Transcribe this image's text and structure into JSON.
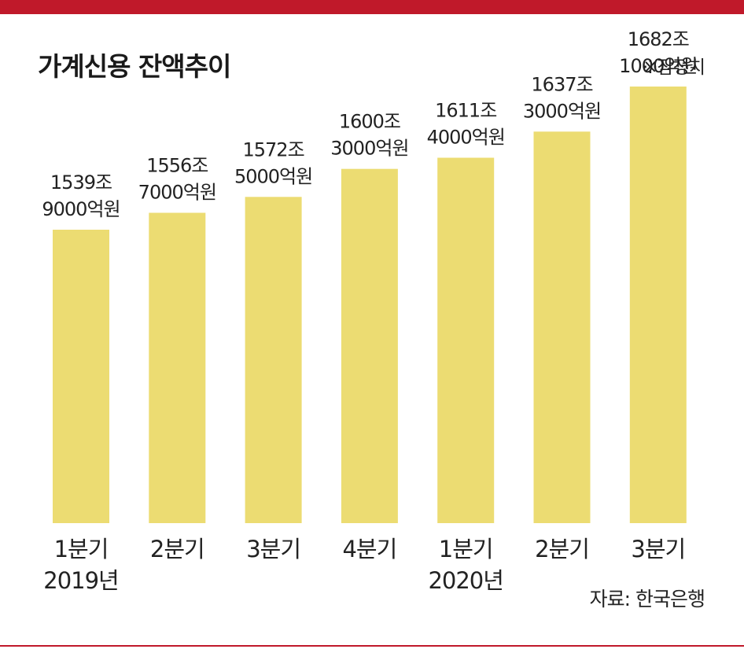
{
  "title": "가계신용 잔액추이",
  "note": "※잠정치",
  "source": "자료: 한국은행",
  "colors": {
    "accent": "#c0192a",
    "bar": "#ecdc72"
  },
  "chart_data": {
    "type": "bar",
    "title": "가계신용 잔액추이",
    "categories": [
      "1분기",
      "2분기",
      "3분기",
      "4분기",
      "1분기",
      "2분기",
      "3분기"
    ],
    "year_labels": [
      "2019년",
      "",
      "",
      "",
      "2020년",
      "",
      ""
    ],
    "values": [
      1539.9,
      1556.7,
      1572.5,
      1600.3,
      1611.4,
      1637.3,
      1682.1
    ],
    "value_labels": [
      [
        "1539조",
        "9000억원"
      ],
      [
        "1556조",
        "7000억원"
      ],
      [
        "1572조",
        "5000억원"
      ],
      [
        "1600조",
        "3000억원"
      ],
      [
        "1611조",
        "4000억원"
      ],
      [
        "1637조",
        "3000억원"
      ],
      [
        "1682조",
        "1000억원"
      ]
    ],
    "unit": "조원",
    "grid": false,
    "legend": "none"
  }
}
